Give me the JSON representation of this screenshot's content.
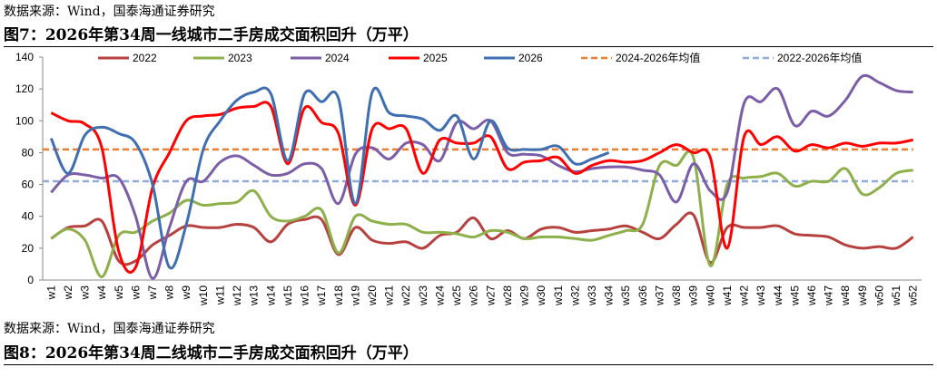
{
  "source": "数据来源：Wind，国泰海通证券研究",
  "chart_data": {
    "type": "line",
    "title": "图7：2026年第34周一线城市二手房成交面积回升（万平）",
    "categories": [
      "w1",
      "w2",
      "w3",
      "w4",
      "w5",
      "w6",
      "w7",
      "w8",
      "w9",
      "w10",
      "w11",
      "w12",
      "w13",
      "w14",
      "w15",
      "w16",
      "w17",
      "w18",
      "w19",
      "w20",
      "w21",
      "w22",
      "w23",
      "w24",
      "w25",
      "w26",
      "w27",
      "w28",
      "w29",
      "w30",
      "w31",
      "w32",
      "w33",
      "w34",
      "w35",
      "w36",
      "w37",
      "w38",
      "w39",
      "w40",
      "w41",
      "w42",
      "w43",
      "w44",
      "w45",
      "w46",
      "w47",
      "w48",
      "w49",
      "w50",
      "w51",
      "w52"
    ],
    "series": [
      {
        "name": "2022",
        "color": "#b7413e",
        "values": [
          26,
          33,
          34,
          37,
          12,
          12,
          22,
          28,
          34,
          33,
          33,
          35,
          33,
          24,
          35,
          38,
          38,
          16,
          33,
          25,
          23,
          24,
          20,
          28,
          30,
          39,
          26,
          31,
          26,
          32,
          33,
          30,
          31,
          32,
          34,
          30,
          26,
          35,
          41,
          11,
          33,
          33,
          33,
          34,
          29,
          28,
          27,
          22,
          20,
          21,
          20,
          27
        ]
      },
      {
        "name": "2023",
        "color": "#8db04a",
        "values": [
          26,
          32,
          25,
          2,
          28,
          30,
          37,
          42,
          50,
          47,
          48,
          49,
          56,
          40,
          37,
          40,
          44,
          17,
          40,
          37,
          35,
          35,
          30,
          30,
          29,
          27,
          31,
          30,
          26,
          27,
          27,
          26,
          25,
          28,
          31,
          35,
          72,
          72,
          77,
          9,
          60,
          64,
          65,
          67,
          59,
          62,
          62,
          70,
          54,
          58,
          67,
          69
        ]
      },
      {
        "name": "2024",
        "color": "#7b5ea7",
        "values": [
          55,
          66,
          66,
          64,
          64,
          40,
          1,
          33,
          62,
          62,
          74,
          78,
          72,
          66,
          67,
          73,
          70,
          48,
          79,
          83,
          76,
          86,
          85,
          75,
          99,
          95,
          100,
          80,
          79,
          78,
          72,
          68,
          70,
          71,
          71,
          69,
          66,
          49,
          73,
          56,
          55,
          111,
          112,
          120,
          97,
          106,
          103,
          113,
          128,
          124,
          119,
          118
        ]
      },
      {
        "name": "2025",
        "color": "#ff0000",
        "values": [
          105,
          100,
          98,
          83,
          18,
          8,
          58,
          80,
          100,
          103,
          104,
          108,
          109,
          109,
          73,
          108,
          99,
          92,
          47,
          95,
          95,
          95,
          67,
          88,
          86,
          86,
          90,
          70,
          74,
          75,
          77,
          67,
          72,
          75,
          74,
          75,
          80,
          85,
          80,
          77,
          20,
          90,
          85,
          90,
          81,
          85,
          83,
          86,
          84,
          86,
          86,
          88
        ]
      },
      {
        "name": "2026",
        "color": "#3f6fb0",
        "values": [
          89,
          67,
          91,
          96,
          92,
          86,
          60,
          8,
          35,
          82,
          100,
          113,
          118,
          117,
          75,
          117,
          112,
          114,
          48,
          118,
          105,
          103,
          101,
          94,
          103,
          76,
          100,
          83,
          82,
          82,
          84,
          73,
          76,
          80,
          null,
          null,
          null,
          null,
          null,
          null,
          null,
          null,
          null,
          null,
          null,
          null,
          null,
          null,
          null,
          null,
          null,
          null
        ]
      }
    ],
    "reference_lines": [
      {
        "name": "2024-2026年均值",
        "color": "#ed7d31",
        "value": 82
      },
      {
        "name": "2022-2026年均值",
        "color": "#8faadc",
        "value": 62
      }
    ],
    "ylim": [
      0,
      140
    ],
    "yticks": [
      0,
      20,
      40,
      60,
      80,
      100,
      120,
      140
    ]
  },
  "next_title": "图8：2026年第34周二线城市二手房成交面积回升（万平）"
}
